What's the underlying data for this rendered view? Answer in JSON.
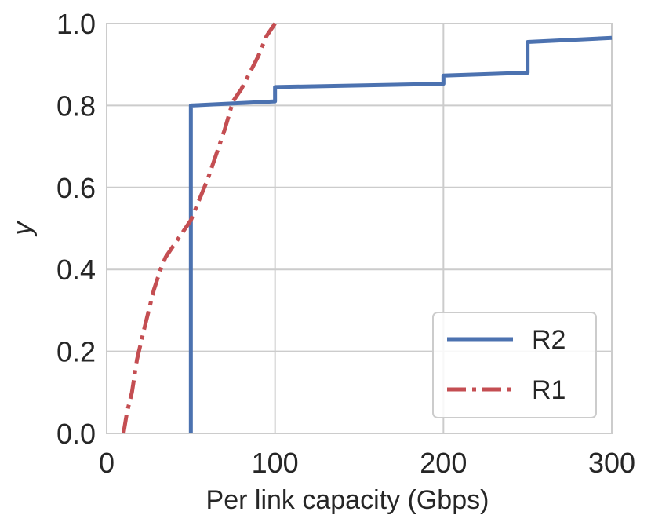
{
  "chart_data": {
    "type": "line",
    "title": "",
    "xlabel": "Per link capacity (Gbps)",
    "ylabel": "y",
    "xlim": [
      0,
      300
    ],
    "ylim": [
      0,
      1.0
    ],
    "xticks": [
      0,
      100,
      200,
      300
    ],
    "yticks": [
      0.0,
      0.2,
      0.4,
      0.6,
      0.8,
      1.0
    ],
    "xtick_labels": [
      "0",
      "100",
      "200",
      "300"
    ],
    "ytick_labels": [
      "0.0",
      "0.2",
      "0.4",
      "0.6",
      "0.8",
      "1.0"
    ],
    "grid": true,
    "legend_position": "lower-right",
    "series": [
      {
        "name": "R2",
        "color": "#4c72b0",
        "style": "solid",
        "x": [
          50,
          50,
          100,
          100,
          200,
          200,
          250,
          250,
          300
        ],
        "y": [
          0.0,
          0.8,
          0.81,
          0.845,
          0.853,
          0.873,
          0.88,
          0.955,
          0.965
        ]
      },
      {
        "name": "R1",
        "color": "#c44e52",
        "style": "dashdot",
        "x": [
          10,
          12,
          15,
          18,
          22,
          25,
          28,
          32,
          35,
          40,
          45,
          50,
          55,
          60,
          65,
          70,
          75,
          80,
          85,
          90,
          95,
          100
        ],
        "y": [
          0.0,
          0.05,
          0.1,
          0.18,
          0.25,
          0.3,
          0.35,
          0.4,
          0.43,
          0.46,
          0.49,
          0.52,
          0.57,
          0.62,
          0.68,
          0.74,
          0.81,
          0.84,
          0.88,
          0.92,
          0.97,
          1.0
        ]
      }
    ]
  }
}
